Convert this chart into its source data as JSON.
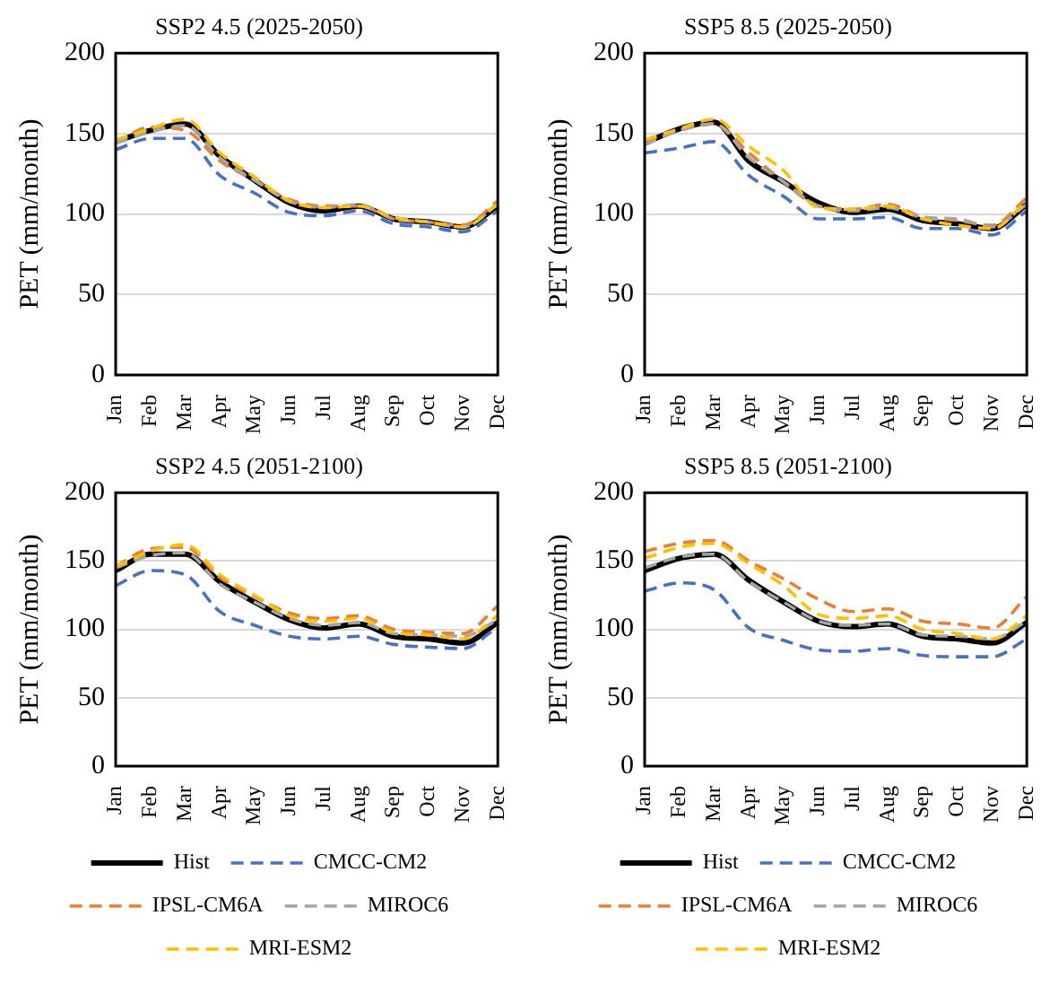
{
  "chart_data": [
    {
      "type": "line",
      "title": "SSP2 4.5 (2025-2050)",
      "ylabel": "PET (mm/month)",
      "categories": [
        "Jan",
        "Feb",
        "Mar",
        "Apr",
        "May",
        "Jun",
        "Jul",
        "Aug",
        "Sep",
        "Oct",
        "Nov",
        "Dec"
      ],
      "ylim": [
        0,
        200
      ],
      "yticks": [
        0,
        50,
        100,
        150,
        200
      ],
      "grid": "y",
      "legend": false,
      "marker": "none",
      "series": [
        {
          "color": "#000000",
          "line_style": "solid",
          "values": [
            145,
            152,
            156,
            136,
            121,
            107,
            102,
            105,
            97,
            95,
            92,
            105
          ]
        },
        {
          "color": "#4472c4",
          "line_style": "dashed",
          "values": [
            140,
            147,
            147,
            124,
            113,
            101,
            99,
            102,
            94,
            92,
            89,
            102
          ]
        },
        {
          "color": "#ed7d31",
          "line_style": "dashed",
          "values": [
            144,
            154,
            152,
            133,
            121,
            109,
            105,
            105,
            97,
            95,
            93,
            108
          ]
        },
        {
          "color": "#a5a5a5",
          "line_style": "dashed",
          "values": [
            144,
            151,
            155,
            135,
            121,
            108,
            104,
            106,
            97,
            95,
            92,
            106
          ]
        },
        {
          "color": "#ffc000",
          "line_style": "dashed",
          "values": [
            146,
            153,
            159,
            138,
            123,
            108,
            104,
            105,
            98,
            95,
            92,
            106
          ]
        }
      ]
    },
    {
      "type": "line",
      "title": "SSP5 8.5 (2025-2050)",
      "ylabel": "PET (mm/month)",
      "categories": [
        "Jan",
        "Feb",
        "Mar",
        "Apr",
        "May",
        "Jun",
        "Jul",
        "Aug",
        "Sep",
        "Oct",
        "Nov",
        "Dec"
      ],
      "ylim": [
        0,
        200
      ],
      "yticks": [
        0,
        50,
        100,
        150,
        200
      ],
      "grid": "y",
      "legend": false,
      "marker": "none",
      "series": [
        {
          "color": "#000000",
          "line_style": "solid",
          "values": [
            144,
            153,
            157,
            133,
            120,
            107,
            101,
            103,
            96,
            94,
            91,
            106
          ]
        },
        {
          "color": "#4472c4",
          "line_style": "dashed",
          "values": [
            138,
            141,
            145,
            124,
            111,
            97,
            97,
            98,
            91,
            91,
            87,
            102
          ]
        },
        {
          "color": "#ed7d31",
          "line_style": "dashed",
          "values": [
            145,
            152,
            156,
            138,
            120,
            105,
            103,
            106,
            98,
            96,
            93,
            110
          ]
        },
        {
          "color": "#a5a5a5",
          "line_style": "dashed",
          "values": [
            143,
            152,
            156,
            135,
            120,
            105,
            102,
            104,
            98,
            97,
            92,
            106
          ]
        },
        {
          "color": "#ffc000",
          "line_style": "dashed",
          "values": [
            146,
            153,
            159,
            142,
            127,
            104,
            103,
            105,
            97,
            93,
            91,
            108
          ]
        }
      ]
    },
    {
      "type": "line",
      "title": "SSP2 4.5 (2051-2100)",
      "ylabel": "PET (mm/month)",
      "categories": [
        "Jan",
        "Feb",
        "Mar",
        "Apr",
        "May",
        "Jun",
        "Jul",
        "Aug",
        "Sep",
        "Oct",
        "Nov",
        "Dec"
      ],
      "ylim": [
        0,
        200
      ],
      "yticks": [
        0,
        50,
        100,
        150,
        200
      ],
      "grid": "y",
      "legend": "bottom",
      "marker": "none",
      "series": [
        {
          "name": "Hist",
          "color": "#000000",
          "line_style": "solid",
          "values": [
            143,
            155,
            155,
            135,
            120,
            107,
            101,
            104,
            95,
            93,
            90,
            105
          ]
        },
        {
          "name": "CMCC-CM2",
          "color": "#4472c4",
          "line_style": "dashed",
          "values": [
            132,
            143,
            140,
            113,
            103,
            95,
            93,
            95,
            89,
            87,
            86,
            102
          ]
        },
        {
          "name": "IPSL-CM6A",
          "color": "#ed7d31",
          "line_style": "dashed",
          "values": [
            146,
            159,
            160,
            138,
            124,
            112,
            108,
            110,
            100,
            98,
            97,
            117
          ]
        },
        {
          "name": "MIROC6",
          "color": "#a5a5a5",
          "line_style": "dashed",
          "values": [
            145,
            154,
            156,
            133,
            120,
            108,
            103,
            105,
            97,
            96,
            95,
            107
          ]
        },
        {
          "name": "MRI-ESM2",
          "color": "#ffc000",
          "line_style": "dashed",
          "values": [
            146,
            157,
            162,
            140,
            125,
            110,
            106,
            108,
            98,
            96,
            93,
            110
          ]
        }
      ]
    },
    {
      "type": "line",
      "title": "SSP5 8.5 (2051-2100)",
      "ylabel": "PET (mm/month)",
      "categories": [
        "Jan",
        "Feb",
        "Mar",
        "Apr",
        "May",
        "Jun",
        "Jul",
        "Aug",
        "Sep",
        "Oct",
        "Nov",
        "Dec"
      ],
      "ylim": [
        0,
        200
      ],
      "yticks": [
        0,
        50,
        100,
        150,
        200
      ],
      "grid": "y",
      "legend": "bottom",
      "marker": "none",
      "series": [
        {
          "name": "Hist",
          "color": "#000000",
          "line_style": "solid",
          "values": [
            143,
            152,
            155,
            136,
            120,
            106,
            102,
            104,
            95,
            93,
            90,
            105
          ]
        },
        {
          "name": "CMCC-CM2",
          "color": "#4472c4",
          "line_style": "dashed",
          "values": [
            128,
            134,
            129,
            101,
            92,
            85,
            84,
            86,
            81,
            80,
            80,
            93
          ]
        },
        {
          "name": "IPSL-CM6A",
          "color": "#ed7d31",
          "line_style": "dashed",
          "values": [
            157,
            163,
            165,
            150,
            137,
            122,
            113,
            115,
            106,
            104,
            101,
            124
          ]
        },
        {
          "name": "MIROC6",
          "color": "#a5a5a5",
          "line_style": "dashed",
          "values": [
            145,
            153,
            155,
            135,
            120,
            106,
            103,
            104,
            96,
            95,
            93,
            106
          ]
        },
        {
          "name": "MRI-ESM2",
          "color": "#ffc000",
          "line_style": "dashed",
          "values": [
            152,
            160,
            163,
            148,
            132,
            111,
            108,
            110,
            100,
            97,
            93,
            110
          ]
        }
      ]
    }
  ]
}
